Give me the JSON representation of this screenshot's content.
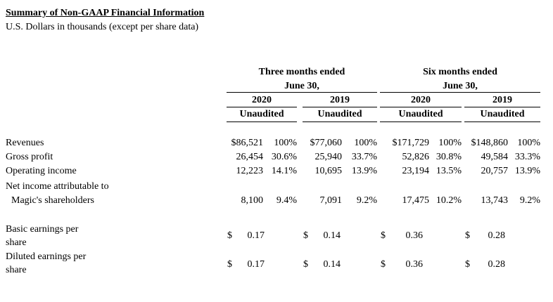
{
  "title": "Summary of Non-GAAP Financial Information",
  "subtitle": "U.S. Dollars in thousands (except per share data)",
  "periods": [
    {
      "heading_line1": "Three months ended",
      "heading_line2": "June 30,",
      "years": [
        "2020",
        "2019"
      ]
    },
    {
      "heading_line1": "Six months ended",
      "heading_line2": "June 30,",
      "years": [
        "2020",
        "2019"
      ]
    }
  ],
  "audit_label": "Unaudited",
  "rows": [
    {
      "label": "Revenues",
      "cells": [
        {
          "value": "$86,521",
          "pct": "100%"
        },
        {
          "value": "$77,060",
          "pct": "100%"
        },
        {
          "value": "$171,729",
          "pct": "100%"
        },
        {
          "value": "$148,860",
          "pct": "100%"
        }
      ]
    },
    {
      "label": "Gross profit",
      "cells": [
        {
          "value": "26,454",
          "pct": "30.6%"
        },
        {
          "value": "25,940",
          "pct": "33.7%"
        },
        {
          "value": "52,826",
          "pct": "30.8%"
        },
        {
          "value": "49,584",
          "pct": "33.3%"
        }
      ]
    },
    {
      "label": "Operating income",
      "cells": [
        {
          "value": "12,223",
          "pct": "14.1%"
        },
        {
          "value": "10,695",
          "pct": "13.9%"
        },
        {
          "value": "23,194",
          "pct": "13.5%"
        },
        {
          "value": "20,757",
          "pct": "13.9%"
        }
      ]
    },
    {
      "label": "Net income attributable to",
      "label2": "Magic's shareholders",
      "cells": [
        {
          "value": "8,100",
          "pct": "9.4%"
        },
        {
          "value": "7,091",
          "pct": "9.2%"
        },
        {
          "value": "17,475",
          "pct": "10.2%"
        },
        {
          "value": "13,743",
          "pct": "9.2%"
        }
      ]
    }
  ],
  "eps_rows": [
    {
      "label": "Basic earnings per",
      "label2": "share",
      "currency": "$",
      "values": [
        "0.17",
        "0.14",
        "0.36",
        "0.28"
      ]
    },
    {
      "label": "Diluted earnings per",
      "label2": "share",
      "currency": "$",
      "values": [
        "0.17",
        "0.14",
        "0.36",
        "0.28"
      ]
    }
  ]
}
